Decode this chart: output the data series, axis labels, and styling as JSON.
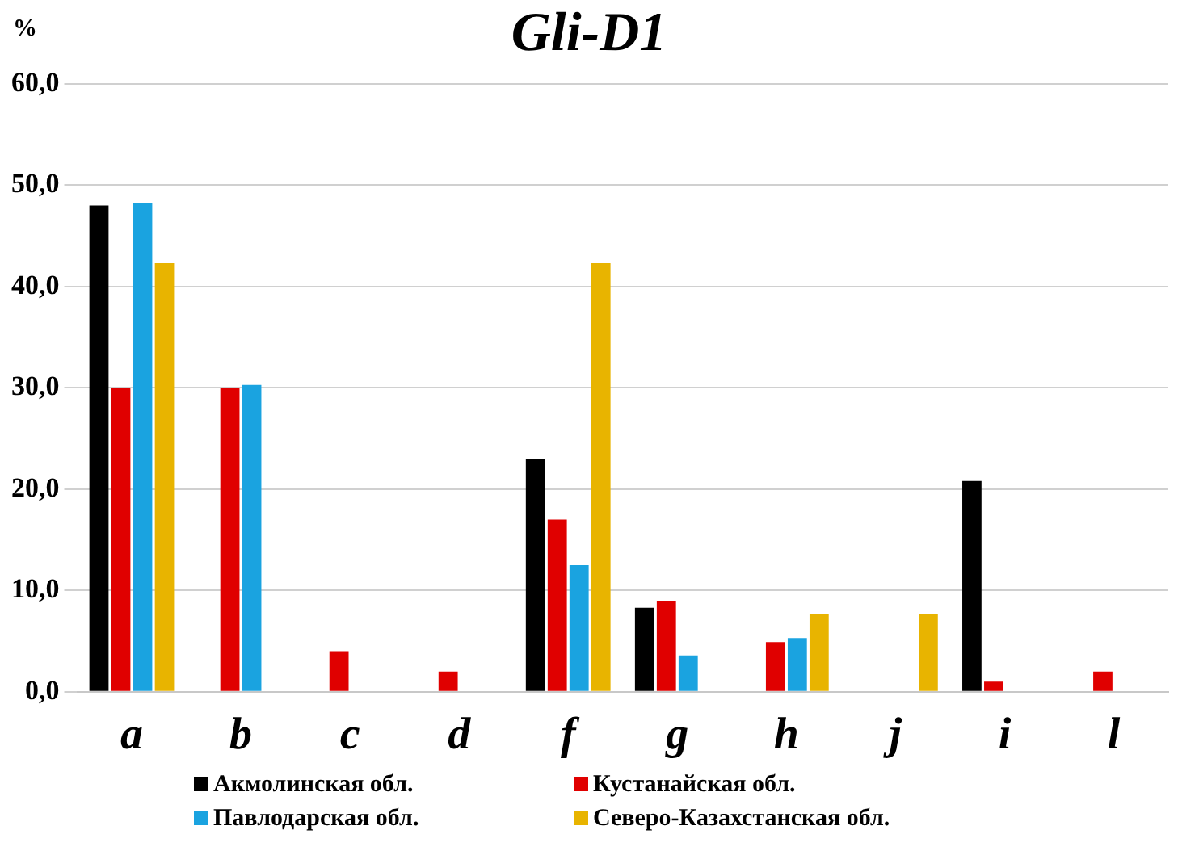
{
  "chart_data": {
    "type": "bar",
    "title": "Gli-D1",
    "ylabel": "%",
    "categories": [
      "a",
      "b",
      "c",
      "d",
      "f",
      "g",
      "h",
      "j",
      "i",
      "l"
    ],
    "series": [
      {
        "name": "Акмолинская обл.",
        "color": "#000000",
        "values": [
          48,
          0,
          0,
          0,
          23,
          8.3,
          0,
          0,
          20.8,
          0
        ]
      },
      {
        "name": "Кустанайская обл.",
        "color": "#e00000",
        "values": [
          30,
          30,
          4,
          2,
          17,
          9,
          4.9,
          0,
          1,
          2
        ]
      },
      {
        "name": "Павлодарская обл.",
        "color": "#1aa3e0",
        "values": [
          48.2,
          30.3,
          0,
          0,
          12.5,
          3.6,
          5.3,
          0,
          0,
          0
        ]
      },
      {
        "name": "Северо-Казахстанская обл.",
        "color": "#e8b400",
        "values": [
          42.3,
          0,
          0,
          0,
          42.3,
          0,
          7.7,
          7.7,
          0,
          0
        ]
      }
    ],
    "ylim": [
      0,
      60
    ],
    "yticks": [
      {
        "value": 0,
        "label": "0,0"
      },
      {
        "value": 10,
        "label": "10,0"
      },
      {
        "value": 20,
        "label": "20,0"
      },
      {
        "value": 30,
        "label": "30,0"
      },
      {
        "value": 40,
        "label": "40,0"
      },
      {
        "value": 50,
        "label": "50,0"
      },
      {
        "value": 60,
        "label": "60,0"
      }
    ],
    "grid": "y",
    "legend": "bottom"
  }
}
